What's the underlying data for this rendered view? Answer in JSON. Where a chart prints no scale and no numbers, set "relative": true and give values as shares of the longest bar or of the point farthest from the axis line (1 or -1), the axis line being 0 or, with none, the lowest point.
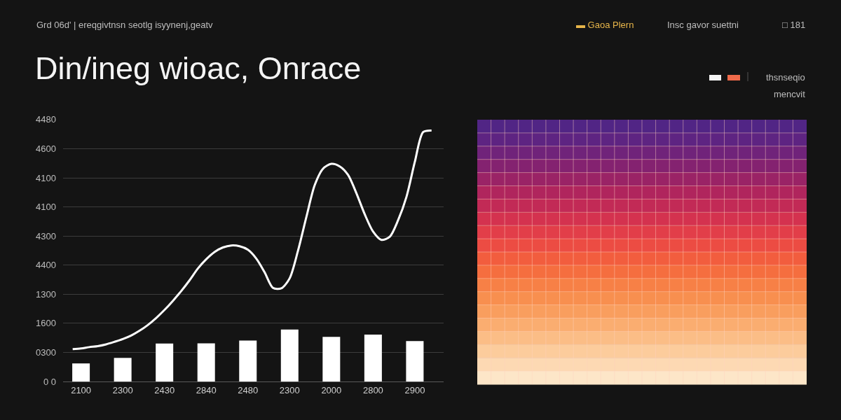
{
  "chart_data": {
    "type": "bar",
    "title": "Din/ineg wioac, Onrace",
    "annotations": [
      "Grd 06d' | ereqgivtnsn seotlg isyynenj,geatv",
      "▬ Gaoa Plern",
      "Insc gavor suettni",
      "□ 181",
      "thsnseqio",
      "mencvit",
      "4480",
      "4600",
      "4100",
      "4100",
      "4300",
      "4400",
      "1300",
      "1600",
      "0300",
      "0 0"
    ],
    "categories": [
      null,
      "2100",
      null,
      null,
      null,
      null,
      "2300",
      null,
      null,
      null,
      null,
      "2430",
      null,
      null,
      null,
      null,
      "2840",
      null,
      null,
      null,
      null,
      "2480",
      null,
      null,
      null,
      null,
      "2300",
      null,
      null,
      null,
      null,
      "2000",
      null,
      null,
      null,
      null,
      "2800",
      null,
      null,
      null,
      null,
      "2900",
      null,
      null
    ],
    "relative": true,
    "series": [
      {
        "color": "#ffffff",
        "values": [
          null,
          0.072,
          null,
          null,
          null,
          null,
          0.094,
          null,
          null,
          null,
          null,
          0.151,
          null,
          null,
          null,
          null,
          0.152,
          null,
          null,
          null,
          null,
          0.163,
          null,
          null,
          null,
          null,
          0.207,
          null,
          null,
          null,
          null,
          0.178,
          null,
          null,
          null,
          null,
          0.187,
          null,
          null,
          null,
          null,
          0.161,
          null,
          null
        ]
      },
      {
        "type": "line",
        "color": "#ffffff",
        "values": [
          0.129,
          0.132,
          0.137,
          0.141,
          0.148,
          0.158,
          0.169,
          0.183,
          0.202,
          0.225,
          0.253,
          0.285,
          0.321,
          0.36,
          0.403,
          0.45,
          0.487,
          0.516,
          0.534,
          0.542,
          0.539,
          0.525,
          0.49,
          0.435,
          0.373,
          0.371,
          0.411,
          0.521,
          0.655,
          0.782,
          0.848,
          0.867,
          0.857,
          0.823,
          0.75,
          0.666,
          0.597,
          0.564,
          0.577,
          0.643,
          0.736,
          0.875,
          0.994,
          1
        ]
      }
    ],
    "grid": "y",
    "marker": "none",
    "line_style": "solid"
  }
}
